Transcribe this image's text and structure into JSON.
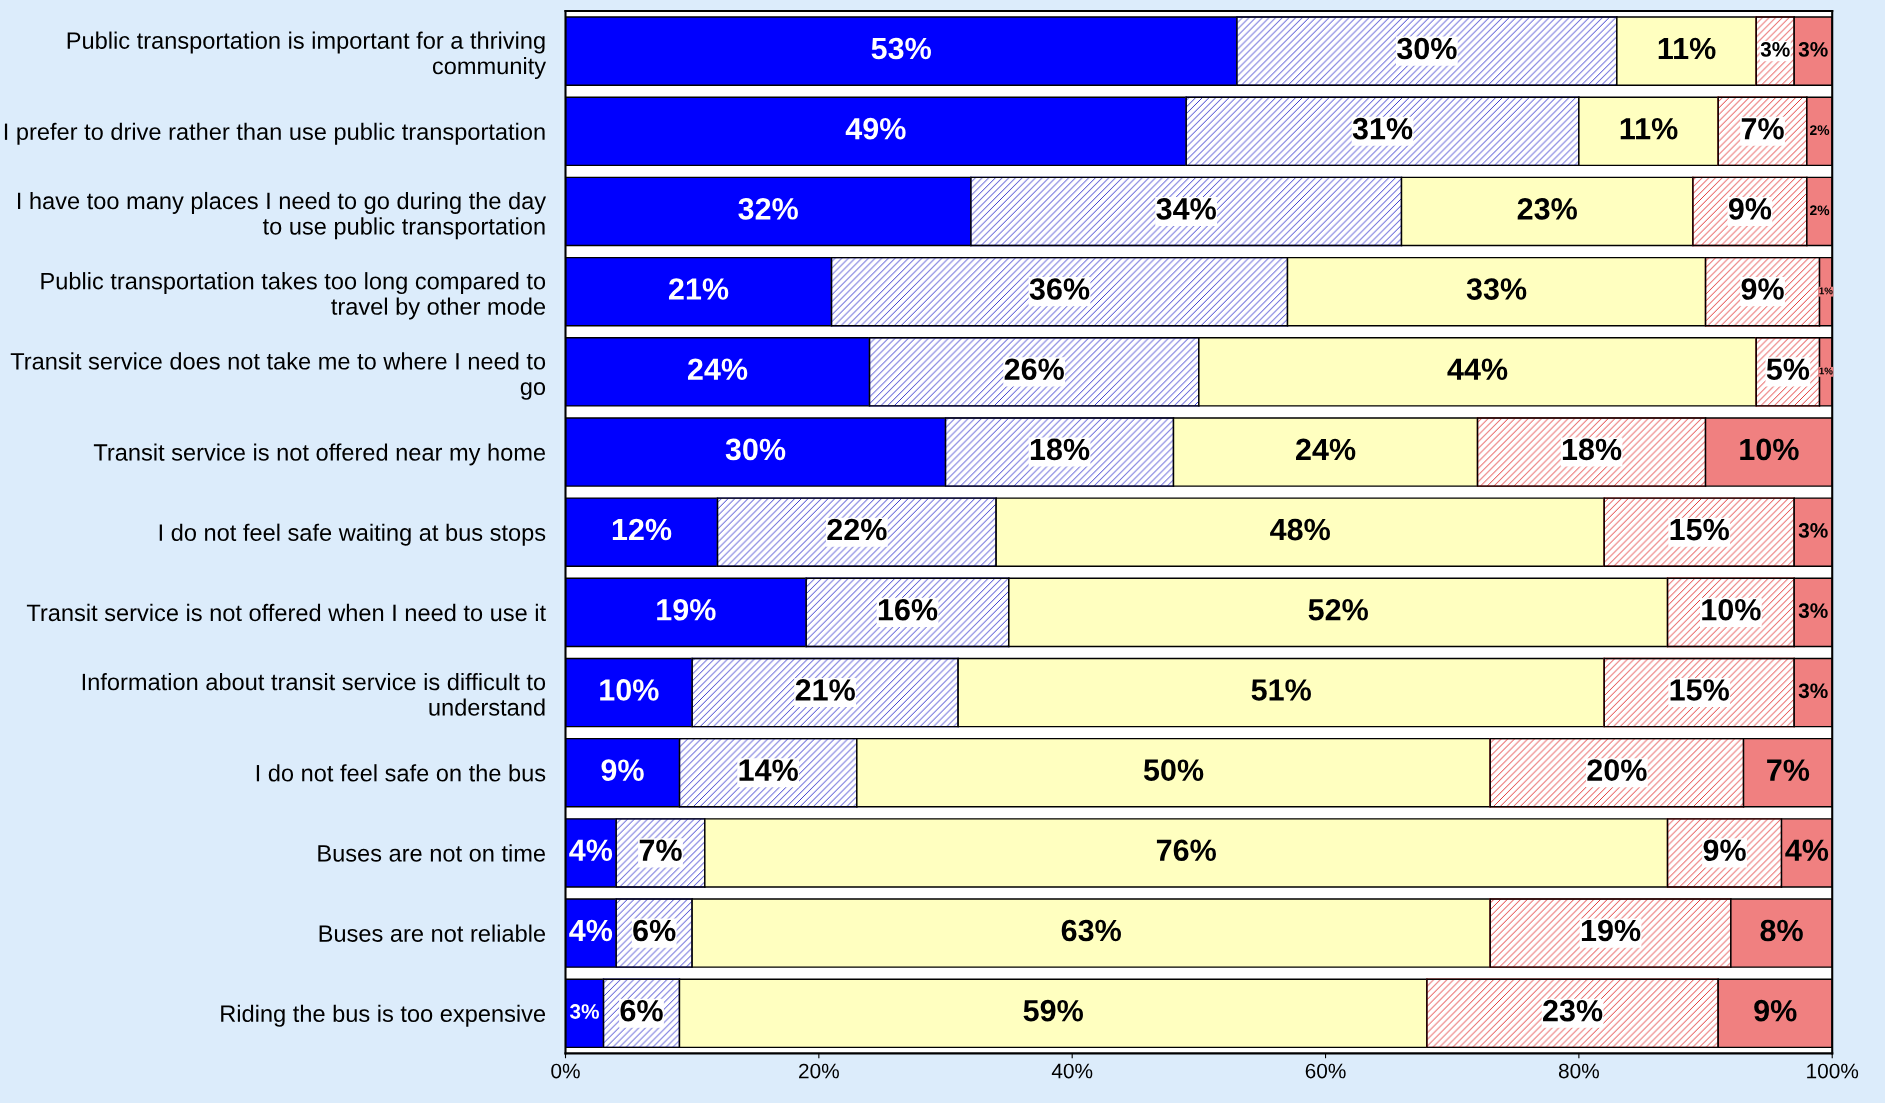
{
  "chart_data": {
    "type": "bar",
    "orientation": "horizontal",
    "stacked": true,
    "grid": false,
    "legend": false,
    "categories": [
      "Public transportation is important for a thriving community",
      "I prefer to drive rather than use public transportation",
      "I have too many places I need to go during the day to use public transportation",
      "Public transportation takes too long compared to travel by other mode",
      "Transit service does not take me to where I need to go",
      "Transit service is not offered near my home",
      "I do not feel safe waiting at bus stops",
      "Transit service is not offered when I need to use it",
      "Information about transit service is difficult to understand",
      "I do not feel safe on the bus",
      "Buses are not on time",
      "Buses are not reliable",
      "Riding the bus is too expensive"
    ],
    "series": [
      {
        "color": "#0000ff",
        "values": [
          53,
          49,
          32,
          21,
          24,
          30,
          12,
          19,
          10,
          9,
          4,
          4,
          3
        ],
        "value_labels": [
          "53%",
          "49%",
          "32%",
          "21%",
          "24%",
          "30%",
          "12%",
          "19%",
          "10%",
          "9%",
          "4%",
          "4%",
          "3%"
        ]
      },
      {
        "color": "#3333cc",
        "values": [
          30,
          31,
          34,
          36,
          26,
          18,
          22,
          16,
          21,
          14,
          7,
          6,
          6
        ],
        "value_labels": [
          "30%",
          "31%",
          "34%",
          "36%",
          "26%",
          "18%",
          "22%",
          "16%",
          "21%",
          "14%",
          "7%",
          "6%",
          "6%"
        ]
      },
      {
        "color": "#ffffc0",
        "values": [
          11,
          11,
          23,
          33,
          44,
          24,
          48,
          52,
          51,
          50,
          76,
          63,
          59
        ],
        "value_labels": [
          "11%",
          "11%",
          "23%",
          "33%",
          "44%",
          "24%",
          "48%",
          "52%",
          "51%",
          "50%",
          "76%",
          "63%",
          "59%"
        ]
      },
      {
        "color": "#e03030",
        "values": [
          3,
          7,
          9,
          9,
          5,
          18,
          15,
          10,
          15,
          20,
          9,
          19,
          23
        ],
        "value_labels": [
          "3%",
          "7%",
          "9%",
          "9%",
          "5%",
          "18%",
          "15%",
          "10%",
          "15%",
          "20%",
          "9%",
          "19%",
          "23%"
        ]
      },
      {
        "color": "#f08080",
        "values": [
          3,
          2,
          2,
          1,
          1,
          10,
          3,
          3,
          3,
          7,
          4,
          8,
          9
        ],
        "value_labels": [
          "3%",
          "2%",
          "2%",
          "1%",
          "1%",
          "10%",
          "3%",
          "3%",
          "3%",
          "7%",
          "4%",
          "8%",
          "9%"
        ]
      }
    ],
    "xlim": [
      0,
      100
    ],
    "xticks": [
      {
        "value": 0,
        "label": "0%"
      },
      {
        "value": 20,
        "label": "20%"
      },
      {
        "value": 40,
        "label": "40%"
      },
      {
        "value": 60,
        "label": "60%"
      },
      {
        "value": 80,
        "label": "80%"
      },
      {
        "value": 100,
        "label": "100%"
      }
    ]
  }
}
